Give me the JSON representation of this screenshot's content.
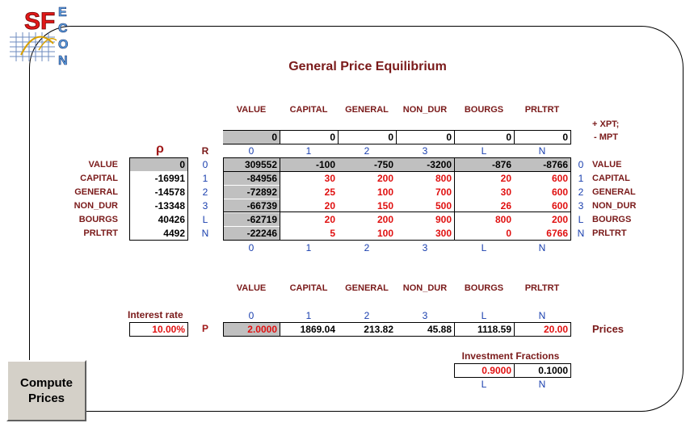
{
  "logo": {
    "letters": "SF",
    "side_letters": [
      "E",
      "C",
      "O",
      "N"
    ]
  },
  "title": "General Price Equilibrium",
  "columns": [
    "VALUE",
    "CAPITAL",
    "GENERAL",
    "NON_DUR",
    "BOURGS",
    "PRLTRT"
  ],
  "col_index": [
    "0",
    "1",
    "2",
    "3",
    "L",
    "N"
  ],
  "xpt_mpt": {
    "line1": "+ XPT;",
    "line2": "- MPT",
    "values": [
      "0",
      "0",
      "0",
      "0",
      "0",
      "0"
    ]
  },
  "rho_symbol": "ρ",
  "r_symbol": "R",
  "rows": [
    {
      "label": "VALUE",
      "rho": "0",
      "idx": "0",
      "cells": [
        "309552",
        "-100",
        "-750",
        "-3200",
        "-876",
        "-8766"
      ]
    },
    {
      "label": "CAPITAL",
      "rho": "-16991",
      "idx": "1",
      "cells": [
        "-84956",
        "30",
        "200",
        "800",
        "20",
        "600"
      ]
    },
    {
      "label": "GENERAL",
      "rho": "-14578",
      "idx": "2",
      "cells": [
        "-72892",
        "25",
        "100",
        "700",
        "30",
        "600"
      ]
    },
    {
      "label": "NON_DUR",
      "rho": "-13348",
      "idx": "3",
      "cells": [
        "-66739",
        "20",
        "150",
        "500",
        "26",
        "600"
      ]
    },
    {
      "label": "BOURGS",
      "rho": "40426",
      "idx": "L",
      "cells": [
        "-62719",
        "20",
        "200",
        "900",
        "800",
        "200"
      ]
    },
    {
      "label": "PRLTRT",
      "rho": "4492",
      "idx": "N",
      "cells": [
        "-22246",
        "5",
        "100",
        "300",
        "0",
        "6766"
      ]
    }
  ],
  "prices_section": {
    "columns": [
      "VALUE",
      "CAPITAL",
      "GENERAL",
      "NON_DUR",
      "BOURGS",
      "PRLTRT"
    ],
    "col_index": [
      "0",
      "1",
      "2",
      "3",
      "L",
      "N"
    ],
    "interest_label": "Interest rate",
    "interest_value": "10.00%",
    "p_label": "P",
    "values": [
      "2.0000",
      "1869.04",
      "213.82",
      "45.88",
      "1118.59",
      "20.00"
    ],
    "prices_label": "Prices"
  },
  "investment": {
    "label": "Investment Fractions",
    "values": [
      "0.9000",
      "0.1000"
    ],
    "index": [
      "L",
      "N"
    ]
  },
  "button": {
    "label": "Compute Prices"
  }
}
